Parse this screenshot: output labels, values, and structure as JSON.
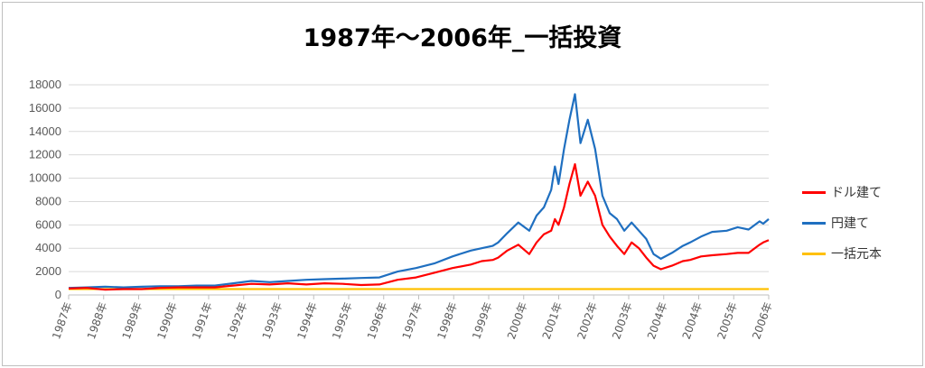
{
  "chart_data": {
    "type": "line",
    "title": "1987年～2006年_一括投資",
    "xlabel": "",
    "ylabel": "",
    "ylim": [
      0,
      18000
    ],
    "yticks": [
      0,
      2000,
      4000,
      6000,
      8000,
      10000,
      12000,
      14000,
      16000,
      18000
    ],
    "x_tick_labels": [
      "1987年",
      "1988年",
      "1989年",
      "1990年",
      "1991年",
      "1992年",
      "1993年",
      "1994年",
      "1995年",
      "1996年",
      "1997年",
      "1998年",
      "1999年",
      "2000年",
      "2001年",
      "2002年",
      "2003年",
      "2004年",
      "2004年",
      "2005年",
      "2006年"
    ],
    "xlim": [
      1987.0,
      2006.15
    ],
    "grid": true,
    "legend_position": "right",
    "x": [
      1987.0,
      1987.5,
      1988.0,
      1988.5,
      1989.0,
      1989.5,
      1990.0,
      1990.5,
      1991.0,
      1991.5,
      1992.0,
      1992.5,
      1993.0,
      1993.5,
      1994.0,
      1994.5,
      1995.0,
      1995.5,
      1996.0,
      1996.5,
      1997.0,
      1997.5,
      1998.0,
      1998.3,
      1998.6,
      1998.75,
      1999.0,
      1999.3,
      1999.6,
      1999.8,
      2000.0,
      2000.2,
      2000.3,
      2000.4,
      2000.55,
      2000.7,
      2000.85,
      2001.0,
      2001.2,
      2001.4,
      2001.6,
      2001.8,
      2002.0,
      2002.2,
      2002.4,
      2002.6,
      2002.8,
      2003.0,
      2003.2,
      2003.5,
      2003.8,
      2004.0,
      2004.3,
      2004.6,
      2005.0,
      2005.3,
      2005.6,
      2005.9,
      2006.0,
      2006.15
    ],
    "series": [
      {
        "name": "ドル建て",
        "color": "#ff0000",
        "values": [
          550,
          600,
          450,
          500,
          500,
          600,
          650,
          650,
          650,
          800,
          950,
          900,
          1000,
          900,
          1000,
          950,
          850,
          900,
          1300,
          1500,
          1900,
          2300,
          2600,
          2900,
          3000,
          3200,
          3800,
          4300,
          3500,
          4500,
          5200,
          5500,
          6500,
          6000,
          7500,
          9500,
          11200,
          8500,
          9700,
          8500,
          6000,
          5000,
          4200,
          3500,
          4500,
          4000,
          3200,
          2500,
          2200,
          2500,
          2900,
          3000,
          3300,
          3400,
          3500,
          3600,
          3600,
          4300,
          4500,
          4700
        ]
      },
      {
        "name": "円建て",
        "color": "#1f6fc0",
        "values": [
          600,
          650,
          700,
          650,
          700,
          750,
          750,
          800,
          800,
          1000,
          1200,
          1100,
          1200,
          1300,
          1350,
          1400,
          1450,
          1500,
          2000,
          2300,
          2700,
          3300,
          3800,
          4000,
          4200,
          4500,
          5300,
          6200,
          5500,
          6800,
          7500,
          9000,
          11000,
          9500,
          12500,
          15000,
          17200,
          13000,
          15000,
          12500,
          8500,
          7000,
          6500,
          5500,
          6200,
          5500,
          4800,
          3500,
          3100,
          3600,
          4200,
          4500,
          5000,
          5400,
          5500,
          5800,
          5600,
          6300,
          6100,
          6500
        ]
      },
      {
        "name": "一括元本",
        "color": "#ffc000",
        "values": [
          500,
          500,
          500,
          500,
          500,
          500,
          500,
          500,
          500,
          500,
          500,
          500,
          500,
          500,
          500,
          500,
          500,
          500,
          500,
          500,
          500,
          500,
          500,
          500,
          500,
          500,
          500,
          500,
          500,
          500,
          500,
          500,
          500,
          500,
          500,
          500,
          500,
          500,
          500,
          500,
          500,
          500,
          500,
          500,
          500,
          500,
          500,
          500,
          500,
          500,
          500,
          500,
          500,
          500,
          500,
          500,
          500,
          500,
          500,
          500
        ]
      }
    ]
  }
}
